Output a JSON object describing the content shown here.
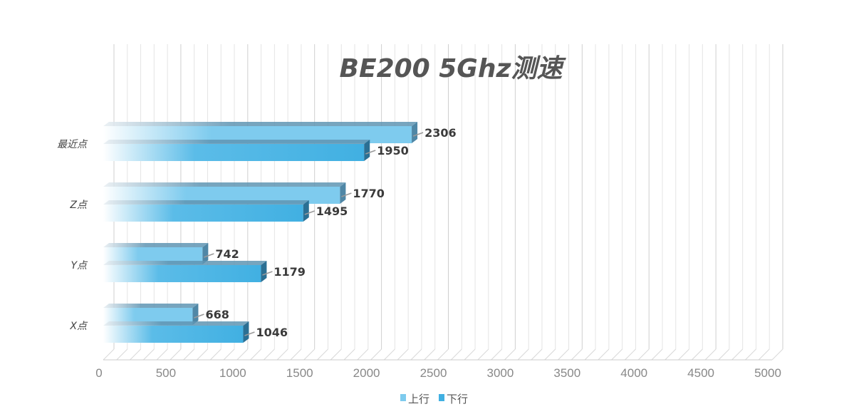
{
  "chart_data": {
    "type": "bar",
    "orientation": "horizontal",
    "style": "3d",
    "title": "BE200 5Ghz测速",
    "categories": [
      "最近点",
      "Z点",
      "Y点",
      "X点"
    ],
    "series": [
      {
        "name": "上行",
        "values": [
          2306,
          1770,
          742,
          668
        ],
        "color": "#7ecbee"
      },
      {
        "name": "下行",
        "values": [
          1950,
          1495,
          1179,
          1046
        ],
        "color": "#41b0e2"
      }
    ],
    "xlim": [
      0,
      5000
    ],
    "xticks": [
      "0",
      "500",
      "1000",
      "1500",
      "2000",
      "2500",
      "3000",
      "3500",
      "4000",
      "4500",
      "5000"
    ],
    "grid": true,
    "legend": "bottom"
  }
}
